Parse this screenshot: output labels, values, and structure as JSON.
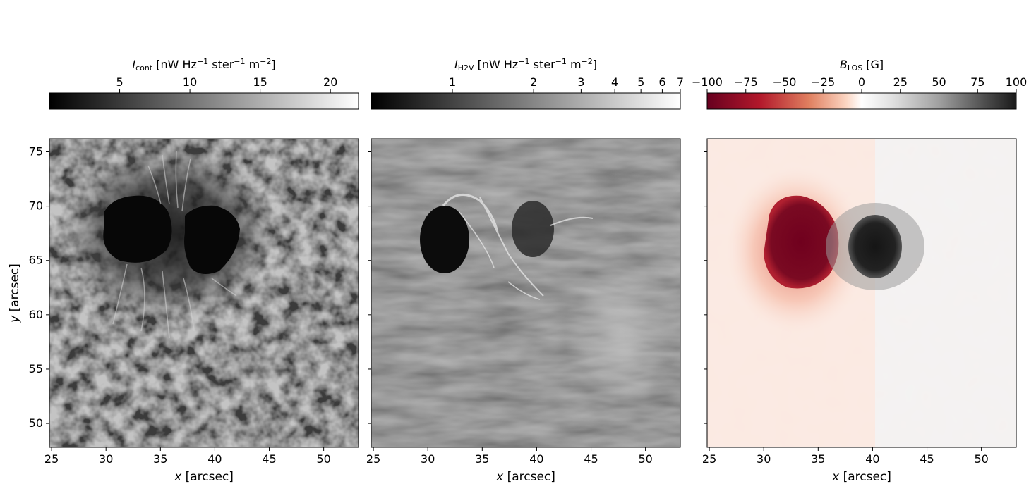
{
  "colorbars": [
    {
      "label_symbol": "I",
      "label_sub": "cont",
      "label_unit_prefix": " [nW Hz",
      "label_sup1": "−1",
      "label_mid": " ster",
      "label_sup2": "−1",
      "label_mid2": " m",
      "label_sup3": "−2",
      "label_end": "]",
      "scale": "linear",
      "range": [
        0,
        22
      ],
      "ticks": [
        {
          "v": 5,
          "t": "5"
        },
        {
          "v": 10,
          "t": "10"
        },
        {
          "v": 15,
          "t": "15"
        },
        {
          "v": 20,
          "t": "20"
        }
      ],
      "colormap": [
        "#000000",
        "#ffffff"
      ]
    },
    {
      "label_symbol": "I",
      "label_sub": "H2V",
      "label_unit_prefix": " [nW Hz",
      "label_sup1": "−1",
      "label_mid": " ster",
      "label_sup2": "−1",
      "label_mid2": " m",
      "label_sup3": "−2",
      "label_end": "]",
      "scale": "log",
      "range": [
        0.5,
        7
      ],
      "ticks": [
        {
          "v": 1,
          "t": "1"
        },
        {
          "v": 2,
          "t": "2"
        },
        {
          "v": 3,
          "t": "3"
        },
        {
          "v": 4,
          "t": "4"
        },
        {
          "v": 5,
          "t": "5"
        },
        {
          "v": 6,
          "t": "6"
        },
        {
          "v": 7,
          "t": "7"
        }
      ],
      "colormap": [
        "#000000",
        "#ffffff"
      ]
    },
    {
      "label_symbol": "B",
      "label_sub": "LOS",
      "label_unit_prefix": " [G]",
      "scale": "linear",
      "range": [
        -100,
        100
      ],
      "ticks": [
        {
          "v": -100,
          "t": "−100"
        },
        {
          "v": -75,
          "t": "−75"
        },
        {
          "v": -50,
          "t": "−50"
        },
        {
          "v": -25,
          "t": "−25"
        },
        {
          "v": 0,
          "t": "0"
        },
        {
          "v": 25,
          "t": "25"
        },
        {
          "v": 50,
          "t": "50"
        },
        {
          "v": 75,
          "t": "75"
        },
        {
          "v": 100,
          "t": "100"
        }
      ],
      "colormap": [
        "#67001f",
        "#d6604d",
        "#fddbc7",
        "#ffffff",
        "#e0e0e0",
        "#878787",
        "#1a1a1a"
      ]
    }
  ],
  "panels": {
    "x_range": [
      24.8,
      53.2
    ],
    "y_range": [
      47.8,
      76.2
    ],
    "x_ticks": [
      {
        "v": 25,
        "t": "25"
      },
      {
        "v": 30,
        "t": "30"
      },
      {
        "v": 35,
        "t": "35"
      },
      {
        "v": 40,
        "t": "40"
      },
      {
        "v": 45,
        "t": "45"
      },
      {
        "v": 50,
        "t": "50"
      }
    ],
    "y_ticks": [
      {
        "v": 50,
        "t": "50"
      },
      {
        "v": 55,
        "t": "55"
      },
      {
        "v": 60,
        "t": "60"
      },
      {
        "v": 65,
        "t": "65"
      },
      {
        "v": 70,
        "t": "70"
      },
      {
        "v": 75,
        "t": "75"
      }
    ],
    "xlabel_var": "x",
    "xlabel_unit": " [arcsec]",
    "ylabel_var": "y",
    "ylabel_unit": " [arcsec]",
    "umbra_left_center": [
      33,
      67
    ],
    "umbra_right_center": [
      40,
      66
    ]
  }
}
